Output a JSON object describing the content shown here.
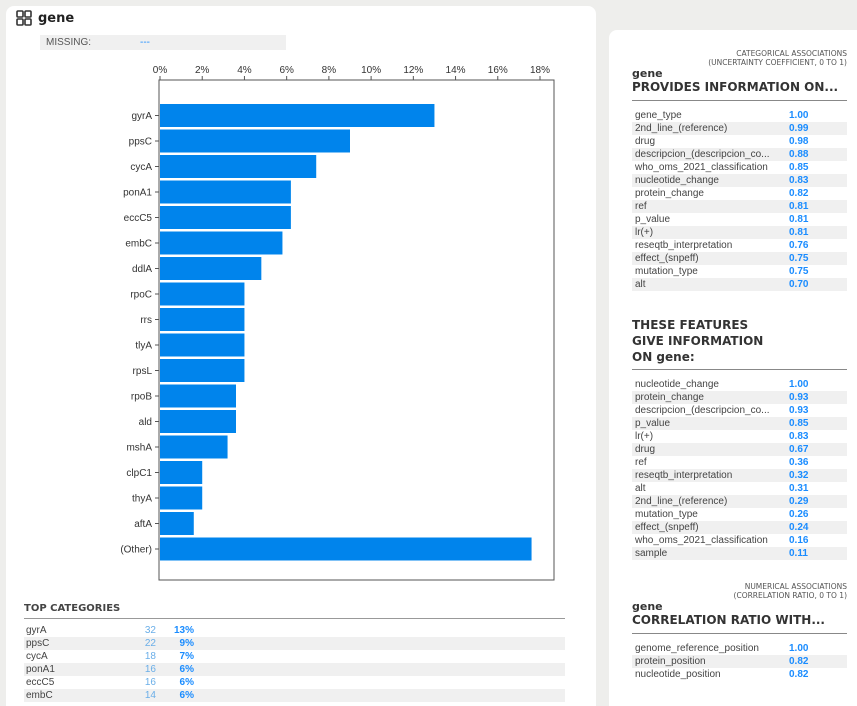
{
  "title": "gene",
  "missing": {
    "label": "MISSING:",
    "value": "---"
  },
  "chart_data": {
    "type": "bar",
    "orientation": "horizontal",
    "categories": [
      "gyrA",
      "ppsC",
      "cycA",
      "ponA1",
      "eccC5",
      "embC",
      "ddlA",
      "rpoC",
      "rrs",
      "tlyA",
      "rpsL",
      "rpoB",
      "ald",
      "mshA",
      "clpC1",
      "thyA",
      "aftA",
      "(Other)"
    ],
    "values": [
      13,
      9,
      7.4,
      6.2,
      6.2,
      5.8,
      4.8,
      4,
      4,
      4,
      4,
      3.6,
      3.6,
      3.2,
      2,
      2,
      1.6,
      17.6
    ],
    "x_ticks": [
      "0%",
      "2%",
      "4%",
      "6%",
      "8%",
      "10%",
      "12%",
      "14%",
      "16%",
      "18%"
    ],
    "xlim": [
      0,
      18
    ],
    "color": "#0084ec"
  },
  "top_categories": {
    "title": "TOP CATEGORIES",
    "rows": [
      {
        "name": "gyrA",
        "count": "32",
        "pct": "13%"
      },
      {
        "name": "ppsC",
        "count": "22",
        "pct": "9%"
      },
      {
        "name": "cycA",
        "count": "18",
        "pct": "7%"
      },
      {
        "name": "ponA1",
        "count": "16",
        "pct": "6%"
      },
      {
        "name": "eccC5",
        "count": "16",
        "pct": "6%"
      },
      {
        "name": "embC",
        "count": "14",
        "pct": "6%"
      }
    ]
  },
  "categorical": {
    "subtitle1": "CATEGORICAL ASSOCIATIONS",
    "subtitle2": "(UNCERTAINTY COEFFICIENT, 0 to 1)",
    "var": "gene",
    "heading": "PROVIDES INFORMATION ON...",
    "rows": [
      {
        "name": "gene_type",
        "value": "1.00"
      },
      {
        "name": "2nd_line_(reference)",
        "value": "0.99"
      },
      {
        "name": "drug",
        "value": "0.98"
      },
      {
        "name": "descripcion_(descripcion_co...",
        "value": "0.88"
      },
      {
        "name": "who_oms_2021_classification",
        "value": "0.85"
      },
      {
        "name": "nucleotide_change",
        "value": "0.83"
      },
      {
        "name": "protein_change",
        "value": "0.82"
      },
      {
        "name": "ref",
        "value": "0.81"
      },
      {
        "name": "p_value",
        "value": "0.81"
      },
      {
        "name": "lr(+)",
        "value": "0.81"
      },
      {
        "name": "reseqtb_interpretation",
        "value": "0.76"
      },
      {
        "name": "effect_(snpeff)",
        "value": "0.75"
      },
      {
        "name": "mutation_type",
        "value": "0.75"
      },
      {
        "name": "alt",
        "value": "0.70"
      }
    ]
  },
  "features": {
    "line1": "THESE FEATURES",
    "line2": "GIVE INFORMATION",
    "line3": "ON gene:",
    "rows": [
      {
        "name": "nucleotide_change",
        "value": "1.00"
      },
      {
        "name": "protein_change",
        "value": "0.93"
      },
      {
        "name": "descripcion_(descripcion_co...",
        "value": "0.93"
      },
      {
        "name": "p_value",
        "value": "0.85"
      },
      {
        "name": "lr(+)",
        "value": "0.83"
      },
      {
        "name": "drug",
        "value": "0.67"
      },
      {
        "name": "ref",
        "value": "0.36"
      },
      {
        "name": "reseqtb_interpretation",
        "value": "0.32"
      },
      {
        "name": "alt",
        "value": "0.31"
      },
      {
        "name": "2nd_line_(reference)",
        "value": "0.29"
      },
      {
        "name": "mutation_type",
        "value": "0.26"
      },
      {
        "name": "effect_(snpeff)",
        "value": "0.24"
      },
      {
        "name": "who_oms_2021_classification",
        "value": "0.16"
      },
      {
        "name": "sample",
        "value": "0.11"
      }
    ]
  },
  "numerical": {
    "subtitle1": "NUMERICAL ASSOCIATIONS",
    "subtitle2": "(CORRELATION RATIO, 0 to 1)",
    "var": "gene",
    "heading": "CORRELATION RATIO WITH...",
    "rows": [
      {
        "name": "genome_reference_position",
        "value": "1.00"
      },
      {
        "name": "protein_position",
        "value": "0.82"
      },
      {
        "name": "nucleotide_position",
        "value": "0.82"
      }
    ]
  }
}
